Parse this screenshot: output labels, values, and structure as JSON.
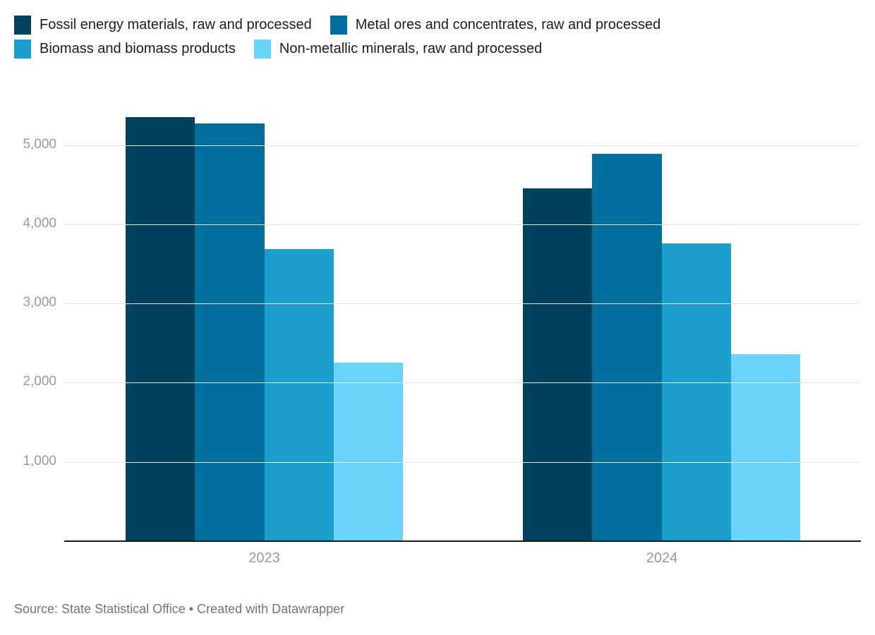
{
  "chart_data": {
    "type": "bar",
    "categories": [
      "2023",
      "2024"
    ],
    "series": [
      {
        "name": "Fossil energy materials, raw and processed",
        "color": "#00415E",
        "values": [
          5350,
          4450
        ]
      },
      {
        "name": "Metal ores and concentrates, raw and processed",
        "color": "#006F9E",
        "values": [
          5270,
          4890
        ]
      },
      {
        "name": "Biomass and biomass products",
        "color": "#1C9FCD",
        "values": [
          3690,
          3760
        ]
      },
      {
        "name": "Non-metallic minerals, raw and processed",
        "color": "#6AD3F9",
        "values": [
          2250,
          2360
        ]
      }
    ],
    "title": "",
    "xlabel": "",
    "ylabel": "",
    "ylim": [
      0,
      5500
    ],
    "yticks": [
      1000,
      2000,
      3000,
      4000,
      5000
    ],
    "ytick_labels": [
      "1,000",
      "2,000",
      "3,000",
      "4,000",
      "5,000"
    ],
    "grid": "horizontal",
    "legend_position": "top-left"
  },
  "footer": {
    "source": "Source: State Statistical Office • Created with Datawrapper"
  },
  "colors": {
    "background": "#ffffff",
    "gridline": "#e8e8e8",
    "axis_line": "#1a1a1a",
    "tick_label": "#9a9a9a",
    "legend_text": "#1d1d1d",
    "source_text": "#757575"
  }
}
